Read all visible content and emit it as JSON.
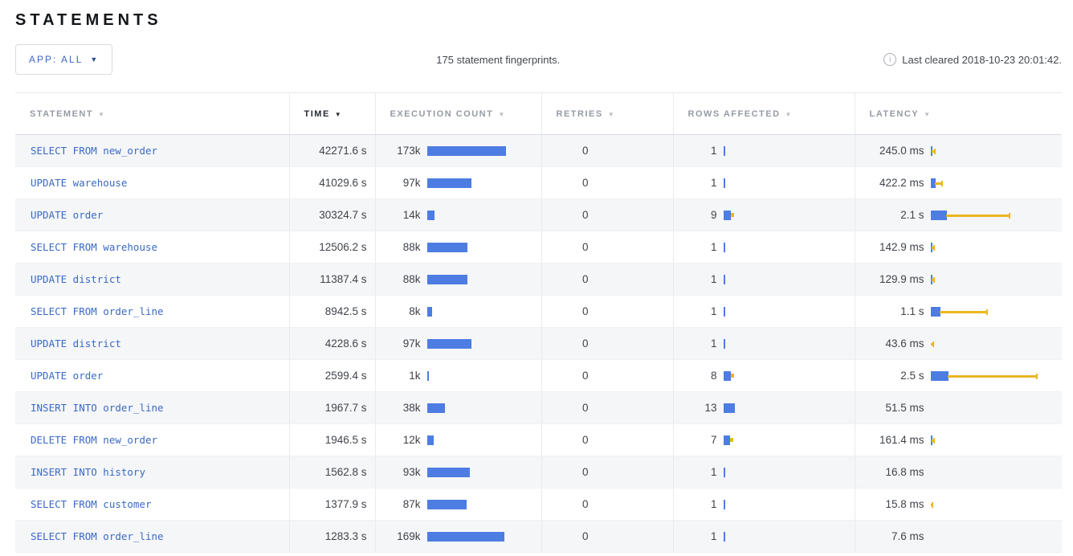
{
  "page": {
    "title": "STATEMENTS"
  },
  "toolbar": {
    "app_filter_label": "APP: ALL",
    "summary": "175 statement fingerprints.",
    "info_icon": "i",
    "last_cleared": "Last cleared 2018-10-23 20:01:42."
  },
  "colors": {
    "link_blue": "#3a69c4",
    "bar_blue": "#4d7de2",
    "bar_yellow": "#eab71f",
    "row_alt_bg": "#f5f6f8"
  },
  "table": {
    "columns": [
      {
        "label": "STATEMENT",
        "sorted": false
      },
      {
        "label": "TIME",
        "sorted": true
      },
      {
        "label": "EXECUTION COUNT",
        "sorted": false
      },
      {
        "label": "RETRIES",
        "sorted": false
      },
      {
        "label": "ROWS AFFECTED",
        "sorted": false
      },
      {
        "label": "LATENCY",
        "sorted": false
      }
    ],
    "rows": [
      {
        "statement": "SELECT FROM new_order",
        "time": "42271.6 s",
        "execution_count": "173k",
        "execution_bar_w": 98,
        "retries": "0",
        "rows_affected": "1",
        "rows_bar_w": 2,
        "rows_dev_w": 0,
        "latency": "245.0 ms",
        "latency_bar_w": 2,
        "latency_dev_w": 5
      },
      {
        "statement": "UPDATE warehouse",
        "time": "41029.6 s",
        "execution_count": "97k",
        "execution_bar_w": 55,
        "retries": "0",
        "rows_affected": "1",
        "rows_bar_w": 2,
        "rows_dev_w": 0,
        "latency": "422.2 ms",
        "latency_bar_w": 6,
        "latency_dev_w": 10
      },
      {
        "statement": "UPDATE order",
        "time": "30324.7 s",
        "execution_count": "14k",
        "execution_bar_w": 9,
        "retries": "0",
        "rows_affected": "9",
        "rows_bar_w": 9,
        "rows_dev_w": 4,
        "latency": "2.1 s",
        "latency_bar_w": 20,
        "latency_dev_w": 80
      },
      {
        "statement": "SELECT FROM warehouse",
        "time": "12506.2 s",
        "execution_count": "88k",
        "execution_bar_w": 50,
        "retries": "0",
        "rows_affected": "1",
        "rows_bar_w": 2,
        "rows_dev_w": 0,
        "latency": "142.9 ms",
        "latency_bar_w": 2,
        "latency_dev_w": 4
      },
      {
        "statement": "UPDATE district",
        "time": "11387.4 s",
        "execution_count": "88k",
        "execution_bar_w": 50,
        "retries": "0",
        "rows_affected": "1",
        "rows_bar_w": 2,
        "rows_dev_w": 0,
        "latency": "129.9 ms",
        "latency_bar_w": 2,
        "latency_dev_w": 4
      },
      {
        "statement": "SELECT FROM order_line",
        "time": "8942.5 s",
        "execution_count": "8k",
        "execution_bar_w": 6,
        "retries": "0",
        "rows_affected": "1",
        "rows_bar_w": 2,
        "rows_dev_w": 0,
        "latency": "1.1 s",
        "latency_bar_w": 12,
        "latency_dev_w": 60
      },
      {
        "statement": "UPDATE district",
        "time": "4228.6 s",
        "execution_count": "97k",
        "execution_bar_w": 55,
        "retries": "0",
        "rows_affected": "1",
        "rows_bar_w": 2,
        "rows_dev_w": 0,
        "latency": "43.6 ms",
        "latency_bar_w": 0,
        "latency_dev_w": 4
      },
      {
        "statement": "UPDATE order",
        "time": "2599.4 s",
        "execution_count": "1k",
        "execution_bar_w": 2,
        "retries": "0",
        "rows_affected": "8",
        "rows_bar_w": 9,
        "rows_dev_w": 4,
        "latency": "2.5 s",
        "latency_bar_w": 22,
        "latency_dev_w": 112
      },
      {
        "statement": "INSERT INTO order_line",
        "time": "1967.7 s",
        "execution_count": "38k",
        "execution_bar_w": 22,
        "retries": "0",
        "rows_affected": "13",
        "rows_bar_w": 14,
        "rows_dev_w": 0,
        "latency": "51.5 ms",
        "latency_bar_w": 0,
        "latency_dev_w": 0
      },
      {
        "statement": "DELETE FROM new_order",
        "time": "1946.5 s",
        "execution_count": "12k",
        "execution_bar_w": 8,
        "retries": "0",
        "rows_affected": "7",
        "rows_bar_w": 8,
        "rows_dev_w": 4,
        "latency": "161.4 ms",
        "latency_bar_w": 2,
        "latency_dev_w": 4
      },
      {
        "statement": "INSERT INTO history",
        "time": "1562.8 s",
        "execution_count": "93k",
        "execution_bar_w": 53,
        "retries": "0",
        "rows_affected": "1",
        "rows_bar_w": 2,
        "rows_dev_w": 0,
        "latency": "16.8 ms",
        "latency_bar_w": 0,
        "latency_dev_w": 0
      },
      {
        "statement": "SELECT FROM customer",
        "time": "1377.9 s",
        "execution_count": "87k",
        "execution_bar_w": 49,
        "retries": "0",
        "rows_affected": "1",
        "rows_bar_w": 2,
        "rows_dev_w": 0,
        "latency": "15.8 ms",
        "latency_bar_w": 0,
        "latency_dev_w": 3
      },
      {
        "statement": "SELECT FROM order_line",
        "time": "1283.3 s",
        "execution_count": "169k",
        "execution_bar_w": 96,
        "retries": "0",
        "rows_affected": "1",
        "rows_bar_w": 2,
        "rows_dev_w": 0,
        "latency": "7.6 ms",
        "latency_bar_w": 0,
        "latency_dev_w": 0
      }
    ]
  }
}
